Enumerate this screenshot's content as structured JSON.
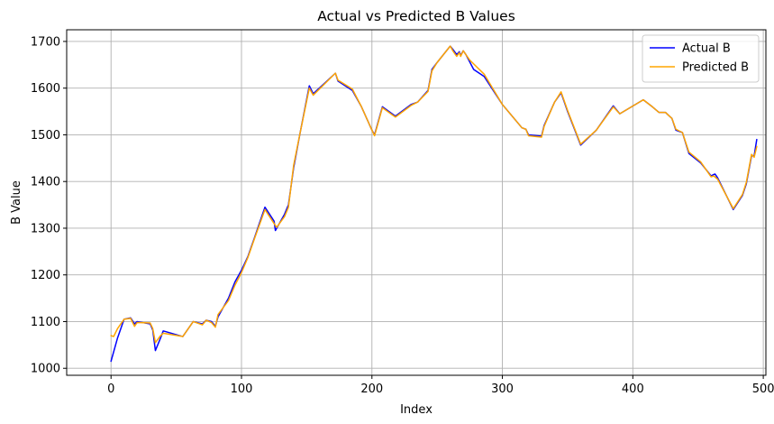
{
  "chart_data": {
    "type": "line",
    "title": "Actual vs Predicted B Values",
    "xlabel": "Index",
    "ylabel": "B Value",
    "xlim": [
      -34,
      502
    ],
    "ylim": [
      985,
      1725
    ],
    "grid": true,
    "legend_position": "top-right",
    "x_ticks": [
      0,
      100,
      200,
      300,
      400,
      500
    ],
    "y_ticks": [
      1000,
      1100,
      1200,
      1300,
      1400,
      1500,
      1600,
      1700
    ],
    "series": [
      {
        "name": "Actual B",
        "color": "#0000ff",
        "points": [
          [
            0,
            1015
          ],
          [
            5,
            1065
          ],
          [
            10,
            1105
          ],
          [
            15,
            1108
          ],
          [
            18,
            1095
          ],
          [
            20,
            1100
          ],
          [
            30,
            1095
          ],
          [
            32,
            1082
          ],
          [
            34,
            1038
          ],
          [
            38,
            1065
          ],
          [
            40,
            1080
          ],
          [
            55,
            1068
          ],
          [
            63,
            1100
          ],
          [
            70,
            1095
          ],
          [
            73,
            1103
          ],
          [
            77,
            1100
          ],
          [
            80,
            1090
          ],
          [
            82,
            1110
          ],
          [
            90,
            1150
          ],
          [
            95,
            1185
          ],
          [
            100,
            1210
          ],
          [
            105,
            1240
          ],
          [
            110,
            1280
          ],
          [
            118,
            1345
          ],
          [
            125,
            1315
          ],
          [
            126,
            1295
          ],
          [
            128,
            1305
          ],
          [
            133,
            1330
          ],
          [
            136,
            1350
          ],
          [
            140,
            1430
          ],
          [
            145,
            1505
          ],
          [
            152,
            1605
          ],
          [
            155,
            1588
          ],
          [
            172,
            1632
          ],
          [
            174,
            1615
          ],
          [
            185,
            1595
          ],
          [
            192,
            1560
          ],
          [
            200,
            1510
          ],
          [
            202,
            1500
          ],
          [
            208,
            1560
          ],
          [
            218,
            1540
          ],
          [
            230,
            1565
          ],
          [
            235,
            1570
          ],
          [
            243,
            1595
          ],
          [
            246,
            1640
          ],
          [
            250,
            1655
          ],
          [
            260,
            1690
          ],
          [
            262,
            1683
          ],
          [
            265,
            1672
          ],
          [
            267,
            1678
          ],
          [
            268,
            1670
          ],
          [
            270,
            1680
          ],
          [
            272,
            1672
          ],
          [
            278,
            1640
          ],
          [
            286,
            1625
          ],
          [
            300,
            1565
          ],
          [
            315,
            1515
          ],
          [
            318,
            1512
          ],
          [
            320,
            1500
          ],
          [
            330,
            1497
          ],
          [
            332,
            1520
          ],
          [
            340,
            1570
          ],
          [
            345,
            1590
          ],
          [
            350,
            1550
          ],
          [
            360,
            1478
          ],
          [
            372,
            1510
          ],
          [
            385,
            1562
          ],
          [
            390,
            1545
          ],
          [
            408,
            1575
          ],
          [
            415,
            1560
          ],
          [
            420,
            1548
          ],
          [
            425,
            1548
          ],
          [
            430,
            1535
          ],
          [
            433,
            1510
          ],
          [
            438,
            1505
          ],
          [
            443,
            1460
          ],
          [
            452,
            1440
          ],
          [
            460,
            1412
          ],
          [
            462,
            1415
          ],
          [
            463,
            1416
          ],
          [
            465,
            1408
          ],
          [
            477,
            1340
          ],
          [
            484,
            1370
          ],
          [
            487,
            1395
          ],
          [
            491,
            1455
          ],
          [
            493,
            1455
          ],
          [
            495,
            1490
          ]
        ]
      },
      {
        "name": "Predicted B",
        "color": "#ffa500",
        "points": [
          [
            0,
            1070
          ],
          [
            2,
            1068
          ],
          [
            5,
            1085
          ],
          [
            10,
            1105
          ],
          [
            15,
            1107
          ],
          [
            18,
            1090
          ],
          [
            20,
            1098
          ],
          [
            30,
            1097
          ],
          [
            32,
            1085
          ],
          [
            34,
            1055
          ],
          [
            38,
            1070
          ],
          [
            40,
            1075
          ],
          [
            55,
            1068
          ],
          [
            63,
            1100
          ],
          [
            70,
            1093
          ],
          [
            73,
            1103
          ],
          [
            77,
            1098
          ],
          [
            80,
            1088
          ],
          [
            82,
            1115
          ],
          [
            90,
            1145
          ],
          [
            95,
            1178
          ],
          [
            100,
            1205
          ],
          [
            105,
            1238
          ],
          [
            110,
            1278
          ],
          [
            118,
            1340
          ],
          [
            125,
            1310
          ],
          [
            127,
            1302
          ],
          [
            133,
            1325
          ],
          [
            136,
            1345
          ],
          [
            140,
            1435
          ],
          [
            145,
            1505
          ],
          [
            152,
            1600
          ],
          [
            155,
            1585
          ],
          [
            172,
            1632
          ],
          [
            174,
            1617
          ],
          [
            185,
            1598
          ],
          [
            192,
            1560
          ],
          [
            200,
            1510
          ],
          [
            202,
            1498
          ],
          [
            208,
            1558
          ],
          [
            218,
            1538
          ],
          [
            230,
            1563
          ],
          [
            235,
            1570
          ],
          [
            243,
            1593
          ],
          [
            246,
            1637
          ],
          [
            250,
            1655
          ],
          [
            260,
            1690
          ],
          [
            262,
            1680
          ],
          [
            265,
            1668
          ],
          [
            267,
            1676
          ],
          [
            268,
            1668
          ],
          [
            270,
            1680
          ],
          [
            275,
            1660
          ],
          [
            286,
            1630
          ],
          [
            300,
            1565
          ],
          [
            315,
            1515
          ],
          [
            318,
            1512
          ],
          [
            320,
            1498
          ],
          [
            330,
            1495
          ],
          [
            332,
            1518
          ],
          [
            340,
            1570
          ],
          [
            345,
            1592
          ],
          [
            350,
            1552
          ],
          [
            360,
            1480
          ],
          [
            372,
            1510
          ],
          [
            385,
            1560
          ],
          [
            390,
            1545
          ],
          [
            408,
            1575
          ],
          [
            415,
            1560
          ],
          [
            420,
            1548
          ],
          [
            425,
            1548
          ],
          [
            430,
            1535
          ],
          [
            433,
            1512
          ],
          [
            438,
            1505
          ],
          [
            443,
            1463
          ],
          [
            452,
            1442
          ],
          [
            460,
            1410
          ],
          [
            462,
            1412
          ],
          [
            465,
            1405
          ],
          [
            477,
            1342
          ],
          [
            484,
            1372
          ],
          [
            487,
            1398
          ],
          [
            491,
            1458
          ],
          [
            493,
            1452
          ],
          [
            495,
            1475
          ]
        ]
      }
    ]
  }
}
